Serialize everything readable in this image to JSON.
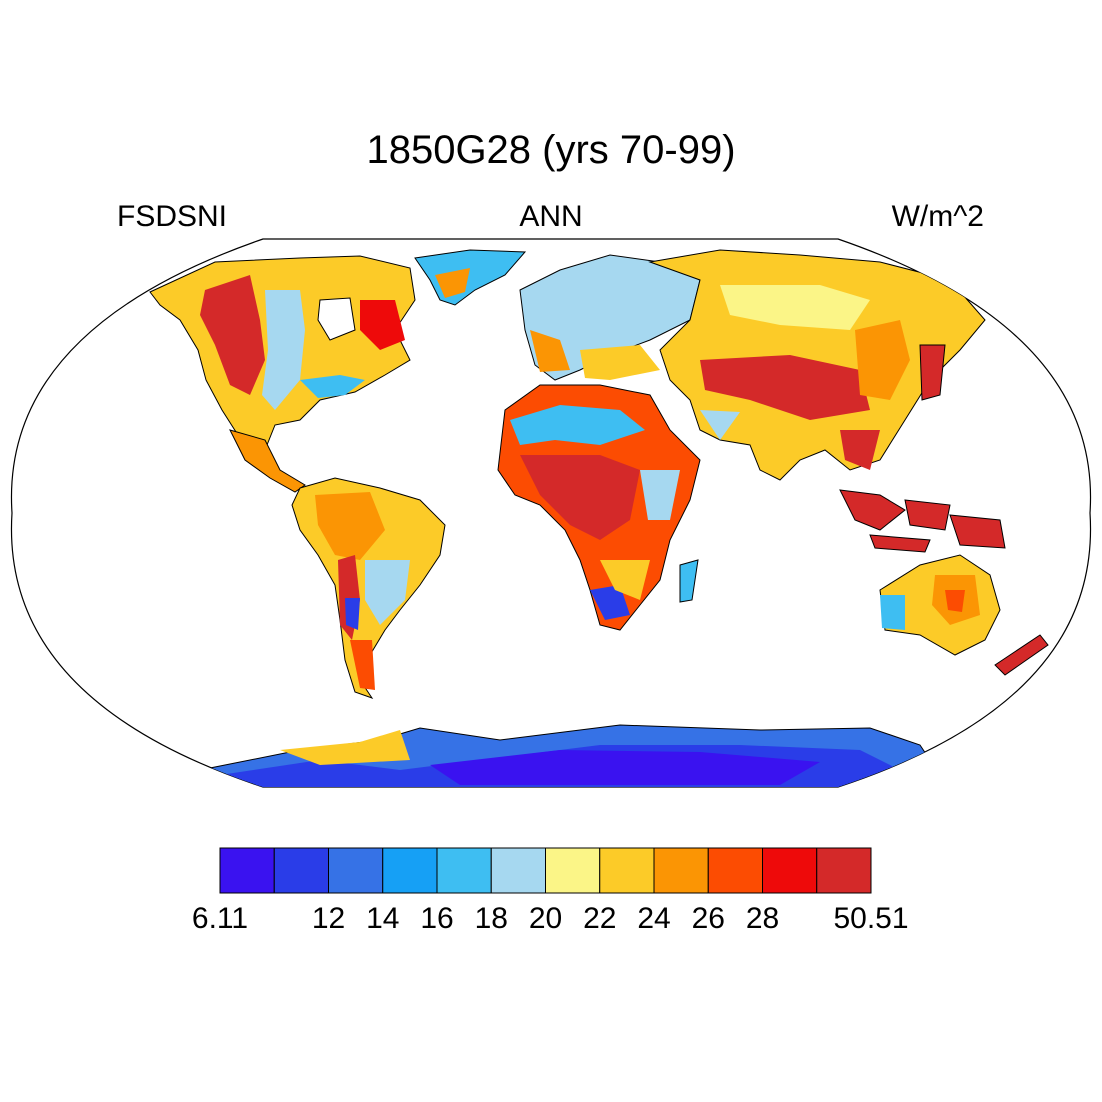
{
  "title": "1850G28 (yrs 70-99)",
  "left_label": "FSDSNI",
  "center_label": "ANN",
  "right_label": "W/m^2",
  "colorbar": {
    "colors": [
      "#3a12f0",
      "#2a3de8",
      "#3672e6",
      "#16a0f5",
      "#3ebef2",
      "#a6d8f0",
      "#fbf587",
      "#fccb28",
      "#fb9504",
      "#fc4c02",
      "#ee0a0a",
      "#d42929"
    ],
    "labels": [
      "6.11",
      "",
      "12",
      "14",
      "16",
      "18",
      "20",
      "22",
      "24",
      "26",
      "28",
      "",
      "50.51"
    ]
  },
  "chart_data": {
    "type": "heatmap",
    "projection": "Robinson",
    "variable": "FSDSNI",
    "season": "ANN",
    "units": "W/m^2",
    "value_range": [
      6.11,
      50.51
    ],
    "levels": [
      12,
      14,
      16,
      18,
      20,
      22,
      24,
      26,
      28
    ],
    "regions": [
      {
        "name": "Central Africa / Sahel",
        "level": 12
      },
      {
        "name": "Maritime Continent",
        "level": 12
      },
      {
        "name": "Tibetan Plateau / Central Asia",
        "level": 11
      },
      {
        "name": "Western North America",
        "level": 11
      },
      {
        "name": "East Siberia / Japan",
        "level": 10
      },
      {
        "name": "Australia",
        "level": 8
      },
      {
        "name": "Sahara",
        "level": 4
      },
      {
        "name": "Northern Europe / Siberia",
        "level": 5
      },
      {
        "name": "Antarctica interior",
        "level": 1
      },
      {
        "name": "Greenland",
        "level": 4
      }
    ]
  }
}
